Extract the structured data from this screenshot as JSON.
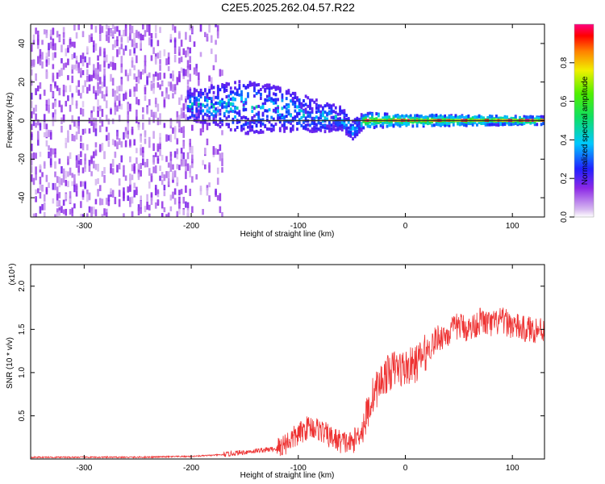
{
  "title": "C2E5.2025.262.04.57.R22",
  "chart_data": [
    {
      "type": "heatmap",
      "name": "spectrogram",
      "xlabel": "Height of straight line (km)",
      "ylabel": "Frequency (Hz)",
      "xlim": [
        -350,
        130
      ],
      "ylim": [
        -50,
        50
      ],
      "xticks": [
        -300,
        -200,
        -100,
        0,
        100
      ],
      "yticks": [
        -40,
        -20,
        0,
        20,
        40
      ],
      "colorbar": {
        "label": "Normalized spectral amplitude",
        "range": [
          0,
          1
        ],
        "ticks": [
          0.0,
          0.2,
          0.4,
          0.6,
          0.8
        ]
      },
      "band_center_hz": {
        "x": [
          -200,
          -180,
          -150,
          -120,
          -100,
          -80,
          -60,
          -50,
          -40,
          -20,
          0,
          50,
          100,
          130
        ],
        "y": [
          8,
          8,
          7,
          6,
          4,
          2,
          1,
          -5,
          0,
          0,
          0,
          0,
          0,
          0
        ]
      },
      "band_halfwidth_hz": {
        "x": [
          -200,
          -150,
          -100,
          -60,
          -40,
          0,
          130
        ],
        "y": [
          8,
          14,
          10,
          6,
          4,
          3,
          2
        ]
      }
    },
    {
      "type": "line",
      "name": "snr",
      "xlabel": "Height of straight line (km)",
      "ylabel": "SNR (10 * v/v)",
      "y_multiplier": "(x10⁴)",
      "xlim": [
        -350,
        130
      ],
      "ylim": [
        0,
        2.25
      ],
      "xticks": [
        -300,
        -200,
        -100,
        0,
        100
      ],
      "yticks": [
        0.5,
        1.0,
        1.5,
        2.0
      ],
      "series": [
        {
          "name": "SNR",
          "color": "#ee3333",
          "x": [
            -350,
            -250,
            -200,
            -170,
            -150,
            -120,
            -110,
            -100,
            -90,
            -80,
            -70,
            -60,
            -50,
            -40,
            -30,
            -20,
            -10,
            0,
            10,
            20,
            30,
            40,
            50,
            60,
            70,
            80,
            90,
            100,
            110,
            120,
            130
          ],
          "y": [
            0.02,
            0.02,
            0.03,
            0.05,
            0.08,
            0.12,
            0.2,
            0.28,
            0.38,
            0.34,
            0.25,
            0.2,
            0.18,
            0.35,
            0.75,
            0.95,
            1.05,
            1.05,
            1.1,
            1.25,
            1.4,
            1.45,
            1.55,
            1.5,
            1.6,
            1.55,
            1.6,
            1.55,
            1.5,
            1.5,
            1.5
          ]
        }
      ]
    }
  ]
}
